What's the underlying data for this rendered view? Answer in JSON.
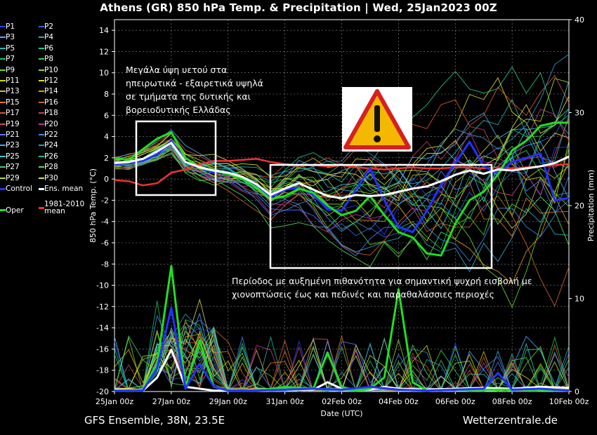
{
  "title": "Athens  (GR)  850 hPa Temp. & Precipitation | Wed, 25Jan2023 00Z",
  "footer": {
    "model": "GFS Ensemble, 38N, 23.5E",
    "source": "Wetterzentrale.de"
  },
  "legend": [
    {
      "label": "P1",
      "color": "#2244ff"
    },
    {
      "label": "P2",
      "color": "#3366dd"
    },
    {
      "label": "P3",
      "color": "#55aaff"
    },
    {
      "label": "P4",
      "color": "#33aacc"
    },
    {
      "label": "P5",
      "color": "#22bbaa"
    },
    {
      "label": "P6",
      "color": "#22cc88"
    },
    {
      "label": "P7",
      "color": "#11cc55"
    },
    {
      "label": "P8",
      "color": "#33dd33"
    },
    {
      "label": "P9",
      "color": "#66dd22"
    },
    {
      "label": "P10",
      "color": "#99dd11"
    },
    {
      "label": "P11",
      "color": "#ccdd00"
    },
    {
      "label": "P12",
      "color": "#dddd22"
    },
    {
      "label": "P13",
      "color": "#ddbb22"
    },
    {
      "label": "P14",
      "color": "#dd9922"
    },
    {
      "label": "P15",
      "color": "#dd7722"
    },
    {
      "label": "P16",
      "color": "#cc6633"
    },
    {
      "label": "P17",
      "color": "#dd5533"
    },
    {
      "label": "P18",
      "color": "#cc4455"
    },
    {
      "label": "P19",
      "color": "#cc4477"
    },
    {
      "label": "P20",
      "color": "#cc3399"
    },
    {
      "label": "P21",
      "color": "#5577ff"
    },
    {
      "label": "P22",
      "color": "#4488ee"
    },
    {
      "label": "P23",
      "color": "#44aaee"
    },
    {
      "label": "P24",
      "color": "#3399cc"
    },
    {
      "label": "P25",
      "color": "#33cccc"
    },
    {
      "label": "P26",
      "color": "#22bb99"
    },
    {
      "label": "P27",
      "color": "#44cc77"
    },
    {
      "label": "P28",
      "color": "#55dd55"
    },
    {
      "label": "P29",
      "color": "#aadd33"
    },
    {
      "label": "P30",
      "color": "#dddd55"
    },
    {
      "label": "Control",
      "color": "#2233ff"
    },
    {
      "label": "Ens. mean",
      "color": "#ffffff"
    },
    {
      "label": "Oper",
      "color": "#22dd22"
    },
    {
      "label": "1981-2010 mean",
      "color": "#ee3333"
    }
  ],
  "annotations": {
    "note1": [
      "Μεγάλα ύψη υετού στα",
      "ηπειρωτικά - εξαιρετικά υψηλά",
      "σε τμήματα της δυτικής και",
      "βορειοδυτικής Ελλάδας"
    ],
    "note2": [
      "Περίοδος με αυξημένη πιθανότητα για σημαντική ψυχρή εισβολή με",
      "χιονοπτώσεις έως και πεδινές και παραθαλάσσιες περιοχές"
    ]
  },
  "chart_data": {
    "type": "line",
    "title": "Athens  (GR)  850 hPa Temp. & Precipitation | Wed, 25Jan2023 00Z",
    "xlabel": "Date (UTC)",
    "ylabel": "850 hPa Temp. (°C)",
    "y2label": "Precipitation (mm)",
    "x_ticks": [
      "25Jan 00z",
      "27Jan 00z",
      "29Jan 00z",
      "31Jan 00z",
      "02Feb 00z",
      "04Feb 00z",
      "06Feb 00z",
      "08Feb 00z",
      "10Feb 00z"
    ],
    "x_range_days": [
      0,
      16
    ],
    "ylim": [
      -20,
      15
    ],
    "y_ticks": [
      -20,
      -18,
      -16,
      -14,
      -12,
      -10,
      -8,
      -6,
      -4,
      -2,
      0,
      2,
      4,
      6,
      8,
      10,
      12,
      14
    ],
    "y2lim": [
      0,
      40
    ],
    "y2_ticks": [
      0,
      10,
      20,
      30,
      40
    ],
    "grid": true,
    "series": [
      {
        "name": "Ens. mean",
        "color": "#ffffff",
        "x_days": [
          0,
          0.5,
          1,
          1.5,
          2,
          2.5,
          3,
          3.5,
          4,
          4.5,
          5,
          5.5,
          6,
          6.5,
          7,
          7.5,
          8,
          8.5,
          9,
          9.5,
          10,
          10.5,
          11,
          11.5,
          12,
          12.5,
          13,
          13.5,
          14,
          14.5,
          15,
          15.5,
          16
        ],
        "values": [
          1.5,
          1.6,
          1.9,
          2.6,
          3.4,
          1.6,
          1.1,
          0.8,
          0.6,
          0.2,
          -0.5,
          -1.5,
          -0.9,
          -0.4,
          -1,
          -1.6,
          -1.8,
          -1.5,
          -1.6,
          -1.5,
          -1.2,
          -0.9,
          -0.7,
          -0.2,
          0.4,
          0.8,
          0.5,
          0.9,
          0.8,
          1.0,
          1.2,
          1.5,
          2.1
        ]
      },
      {
        "name": "1981-2010 mean",
        "color": "#ee3333",
        "x_days": [
          0,
          0.5,
          1,
          1.5,
          2,
          2.5,
          3,
          3.5,
          4,
          4.5,
          5,
          5.5,
          6,
          6.5,
          7,
          7.5,
          8,
          8.5,
          9,
          9.5,
          10,
          10.5,
          11,
          11.5,
          12,
          12.5,
          13,
          13.5,
          14,
          14.5,
          15,
          15.5,
          16
        ],
        "values": [
          -0.1,
          -0.2,
          -0.6,
          -0.4,
          0.6,
          0.9,
          1.4,
          1.7,
          1.7,
          1.8,
          1.9,
          1.6,
          1.4,
          1.3,
          1.3,
          1.2,
          1.3,
          1.1,
          1.0,
          0.9,
          1.0,
          1.1,
          1.0,
          1.0,
          1.1,
          1.1,
          1.0,
          1.1,
          1.0,
          1.1,
          1.2,
          1.3,
          1.4
        ]
      },
      {
        "name": "Oper",
        "color": "#22dd22",
        "x_days": [
          0,
          0.5,
          1,
          1.5,
          2,
          2.5,
          3,
          3.5,
          4,
          4.5,
          5,
          5.5,
          6,
          6.5,
          7,
          7.5,
          8,
          8.5,
          9,
          9.5,
          10,
          10.5,
          11,
          11.5,
          12,
          12.5,
          13,
          13.5,
          14,
          14.5,
          15,
          15.5,
          16
        ],
        "values": [
          2.0,
          1.8,
          2.8,
          3.8,
          4.4,
          2.0,
          1.0,
          0.8,
          0.5,
          0.0,
          -0.8,
          -1.9,
          -1.6,
          -0.9,
          -1.3,
          -2.5,
          -3.4,
          -3.0,
          -1.6,
          -3.4,
          -5.0,
          -5.5,
          -7.0,
          -7.2,
          -4.2,
          -2.0,
          -1.2,
          0.4,
          2.7,
          3.6,
          5.0,
          5.3,
          5.3
        ]
      },
      {
        "name": "Control",
        "color": "#2233ff",
        "x_days": [
          0,
          0.5,
          1,
          1.5,
          2,
          2.5,
          3,
          3.5,
          4,
          4.5,
          5,
          5.5,
          6,
          6.5,
          7,
          7.5,
          8,
          8.5,
          9,
          9.5,
          10,
          10.5,
          11,
          11.5,
          12,
          12.5,
          13,
          13.5,
          14,
          14.5,
          15,
          15.5,
          16
        ],
        "values": [
          1.4,
          1.5,
          1.7,
          2.3,
          3.6,
          1.6,
          1.0,
          0.6,
          0.6,
          0.0,
          -0.6,
          -1.7,
          -1.0,
          -0.8,
          -1.5,
          -2.8,
          -3.0,
          -1.0,
          1.0,
          -2.0,
          -4.5,
          -5.0,
          -3.0,
          -0.5,
          1.5,
          3.5,
          1.2,
          0.5,
          1.6,
          2.0,
          2.4,
          -2.0,
          -1.8
        ]
      }
    ],
    "precipitation": [
      {
        "name": "Ens. mean",
        "color": "#ffffff",
        "x_days": [
          0,
          1,
          1.5,
          2,
          2.5,
          3,
          3.5,
          4,
          5,
          6,
          7,
          7.5,
          8,
          9,
          9.5,
          10,
          11,
          12,
          13,
          14,
          15,
          16
        ],
        "values": [
          0.2,
          0.1,
          1.5,
          4.5,
          0.5,
          0.3,
          0.1,
          0.1,
          0.1,
          0.2,
          0.2,
          1.0,
          0.3,
          0.2,
          0.5,
          0.3,
          0.2,
          0.3,
          0.4,
          0.3,
          0.5,
          0.4
        ]
      },
      {
        "name": "Oper",
        "color": "#22dd22",
        "x_days": [
          0,
          1,
          1.5,
          2,
          2.5,
          3,
          3.5,
          4,
          5,
          6,
          7,
          7.5,
          8,
          8.5,
          9,
          9.5,
          10,
          10.5,
          11,
          12,
          13,
          14,
          15,
          16
        ],
        "values": [
          0.1,
          0.1,
          3.0,
          13.5,
          0.5,
          5.5,
          0.5,
          0.1,
          0.1,
          0.5,
          0.3,
          4.2,
          0.5,
          0.1,
          0.3,
          1.5,
          11.0,
          1.0,
          0.1,
          0.2,
          0.2,
          0.2,
          0.2,
          0.1
        ]
      },
      {
        "name": "Control",
        "color": "#2233ff",
        "x_days": [
          0,
          1,
          1.5,
          2,
          2.5,
          3,
          3.5,
          4,
          5,
          6,
          7,
          8,
          9,
          10,
          11,
          12,
          13,
          13.5,
          14,
          15,
          16
        ],
        "values": [
          0.1,
          0.1,
          2.5,
          9.0,
          0.3,
          3.0,
          0.5,
          0.1,
          0.1,
          0.2,
          0.3,
          0.2,
          0.5,
          0.2,
          0.1,
          0.2,
          0.3,
          2.0,
          0.2,
          0.3,
          0.1
        ]
      }
    ]
  }
}
